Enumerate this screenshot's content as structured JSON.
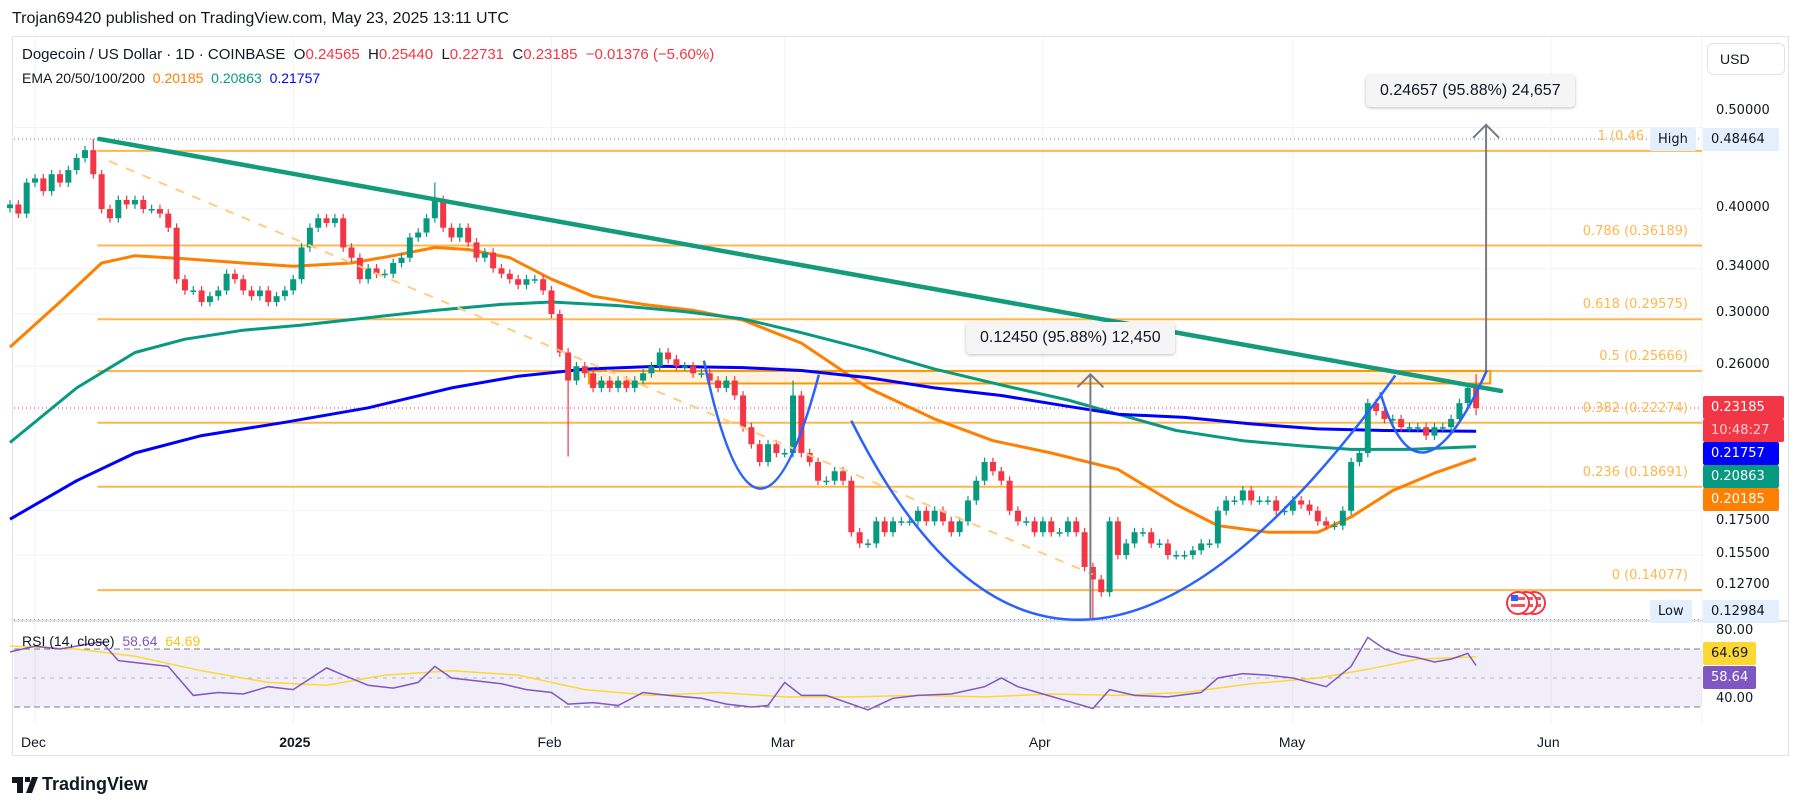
{
  "header": {
    "published": "Trojan69420 published on TradingView.com, May 23, 2025 13:11 UTC"
  },
  "legend": {
    "symbol": "Dogecoin / US Dollar · 1D · COINBASE",
    "o_label": "O",
    "o": "0.24565",
    "h_label": "H",
    "h": "0.25440",
    "l_label": "L",
    "l": "0.22731",
    "c_label": "C",
    "c": "0.23185",
    "change": "−0.01376 (−5.60%)",
    "ema_label": "EMA 20/50/100/200",
    "ema20": "0.20185",
    "ema50": "0.20863",
    "ema200": "0.21757"
  },
  "currency_button": "USD",
  "rsi_legend": {
    "label": "RSI (14, close)",
    "rsi": "58.64",
    "ma": "64.69"
  },
  "brand": "TradingView",
  "colors": {
    "up": "#089981",
    "down": "#f23645",
    "ema20": "#ff7f00",
    "ema50": "#089981",
    "ema200": "#0000ff",
    "fib": "#ffb74d",
    "trend": "#149b7c",
    "cup": "#2962ff",
    "rsi": "#7e57c2",
    "rsi_ma": "#fdd835"
  },
  "chart_data": {
    "type": "candlestick",
    "title": "Dogecoin / US Dollar · 1D · COINBASE",
    "scale": "log",
    "ylim": [
      0.125,
      0.51
    ],
    "x_start": "2024-11-28",
    "x_ticks": [
      {
        "label": "Dec",
        "day": 0,
        "bold": false
      },
      {
        "label": "2025",
        "day": 31,
        "bold": true
      },
      {
        "label": "Feb",
        "day": 62,
        "bold": false
      },
      {
        "label": "Mar",
        "day": 90,
        "bold": false
      },
      {
        "label": "Apr",
        "day": 121,
        "bold": false
      },
      {
        "label": "May",
        "day": 151,
        "bold": false
      },
      {
        "label": "Jun",
        "day": 182,
        "bold": false
      }
    ],
    "y_ticks": [
      {
        "label": "0.50000",
        "value": 0.5
      },
      {
        "label": "0.40000",
        "value": 0.4
      },
      {
        "label": "0.34000",
        "value": 0.34
      },
      {
        "label": "0.30000",
        "value": 0.3
      },
      {
        "label": "0.26000",
        "value": 0.26
      },
      {
        "label": "0.17500",
        "value": 0.175
      },
      {
        "label": "0.15500",
        "value": 0.155
      },
      {
        "label": "0.12700",
        "value": 0.127
      }
    ],
    "first_day": -3,
    "closes": [
      0.405,
      0.395,
      0.43,
      0.435,
      0.42,
      0.44,
      0.43,
      0.445,
      0.46,
      0.47,
      0.44,
      0.4,
      0.39,
      0.41,
      0.405,
      0.41,
      0.4,
      0.4,
      0.395,
      0.38,
      0.33,
      0.32,
      0.32,
      0.31,
      0.315,
      0.32,
      0.335,
      0.33,
      0.32,
      0.315,
      0.32,
      0.31,
      0.315,
      0.32,
      0.33,
      0.36,
      0.38,
      0.39,
      0.385,
      0.39,
      0.36,
      0.35,
      0.33,
      0.34,
      0.335,
      0.335,
      0.345,
      0.35,
      0.37,
      0.375,
      0.39,
      0.41,
      0.38,
      0.37,
      0.38,
      0.365,
      0.35,
      0.355,
      0.34,
      0.335,
      0.33,
      0.325,
      0.33,
      0.33,
      0.32,
      0.3,
      0.27,
      0.25,
      0.26,
      0.255,
      0.245,
      0.25,
      0.245,
      0.25,
      0.245,
      0.25,
      0.255,
      0.26,
      0.27,
      0.265,
      0.26,
      0.26,
      0.255,
      0.255,
      0.25,
      0.245,
      0.25,
      0.24,
      0.22,
      0.21,
      0.2,
      0.21,
      0.205,
      0.205,
      0.24,
      0.205,
      0.2,
      0.19,
      0.19,
      0.195,
      0.19,
      0.165,
      0.16,
      0.16,
      0.17,
      0.165,
      0.17,
      0.17,
      0.17,
      0.175,
      0.17,
      0.175,
      0.17,
      0.165,
      0.17,
      0.18,
      0.19,
      0.2,
      0.195,
      0.19,
      0.175,
      0.17,
      0.17,
      0.165,
      0.17,
      0.165,
      0.165,
      0.17,
      0.165,
      0.15,
      0.145,
      0.14,
      0.17,
      0.155,
      0.16,
      0.165,
      0.165,
      0.16,
      0.16,
      0.155,
      0.155,
      0.155,
      0.157,
      0.16,
      0.16,
      0.175,
      0.18,
      0.18,
      0.185,
      0.18,
      0.18,
      0.18,
      0.175,
      0.175,
      0.18,
      0.178,
      0.175,
      0.17,
      0.168,
      0.168,
      0.175,
      0.2,
      0.205,
      0.235,
      0.23,
      0.225,
      0.225,
      0.22,
      0.22,
      0.22,
      0.215,
      0.22,
      0.22,
      0.225,
      0.235,
      0.245,
      0.23185
    ],
    "extremes": [
      {
        "day": 7,
        "high": 0.48464
      },
      {
        "day": 64,
        "low": 0.203
      },
      {
        "day": 127,
        "low": 0.12984
      },
      {
        "day": 48,
        "high": 0.43
      },
      {
        "day": 91,
        "high": 0.25
      }
    ],
    "last_candle": {
      "day": 173,
      "open": 0.24565,
      "high": 0.2544,
      "low": 0.22731,
      "close": 0.23185
    },
    "series": [
      {
        "name": "EMA 20",
        "value": 0.20185,
        "points": [
          [
            -3,
            0.274
          ],
          [
            3,
            0.31
          ],
          [
            8,
            0.345
          ],
          [
            12,
            0.352
          ],
          [
            18,
            0.349
          ],
          [
            25,
            0.345
          ],
          [
            31,
            0.342
          ],
          [
            38,
            0.345
          ],
          [
            43,
            0.352
          ],
          [
            48,
            0.36
          ],
          [
            52,
            0.358
          ],
          [
            57,
            0.35
          ],
          [
            62,
            0.33
          ],
          [
            67,
            0.315
          ],
          [
            73,
            0.308
          ],
          [
            79,
            0.303
          ],
          [
            85,
            0.295
          ],
          [
            92,
            0.277
          ],
          [
            100,
            0.245
          ],
          [
            108,
            0.225
          ],
          [
            115,
            0.212
          ],
          [
            122,
            0.205
          ],
          [
            130,
            0.196
          ],
          [
            137,
            0.178
          ],
          [
            142,
            0.168
          ],
          [
            148,
            0.165
          ],
          [
            154,
            0.165
          ],
          [
            158,
            0.172
          ],
          [
            163,
            0.185
          ],
          [
            168,
            0.194
          ],
          [
            173,
            0.20185
          ]
        ]
      },
      {
        "name": "EMA 50",
        "value": 0.20863,
        "points": [
          [
            -3,
            0.211
          ],
          [
            5,
            0.245
          ],
          [
            12,
            0.27
          ],
          [
            18,
            0.28
          ],
          [
            25,
            0.287
          ],
          [
            32,
            0.291
          ],
          [
            40,
            0.297
          ],
          [
            48,
            0.303
          ],
          [
            56,
            0.308
          ],
          [
            62,
            0.31
          ],
          [
            70,
            0.307
          ],
          [
            78,
            0.302
          ],
          [
            85,
            0.296
          ],
          [
            92,
            0.285
          ],
          [
            100,
            0.272
          ],
          [
            108,
            0.258
          ],
          [
            116,
            0.247
          ],
          [
            124,
            0.237
          ],
          [
            130,
            0.228
          ],
          [
            137,
            0.218
          ],
          [
            145,
            0.212
          ],
          [
            152,
            0.209
          ],
          [
            158,
            0.207
          ],
          [
            165,
            0.207
          ],
          [
            173,
            0.20863
          ]
        ]
      },
      {
        "name": "EMA 200",
        "value": 0.21757,
        "points": [
          [
            -3,
            0.171
          ],
          [
            5,
            0.19
          ],
          [
            12,
            0.205
          ],
          [
            20,
            0.215
          ],
          [
            30,
            0.223
          ],
          [
            40,
            0.232
          ],
          [
            50,
            0.245
          ],
          [
            58,
            0.253
          ],
          [
            66,
            0.258
          ],
          [
            75,
            0.26
          ],
          [
            85,
            0.259
          ],
          [
            92,
            0.257
          ],
          [
            100,
            0.252
          ],
          [
            108,
            0.245
          ],
          [
            116,
            0.24
          ],
          [
            124,
            0.233
          ],
          [
            130,
            0.228
          ],
          [
            138,
            0.226
          ],
          [
            146,
            0.222
          ],
          [
            154,
            0.219
          ],
          [
            162,
            0.218
          ],
          [
            173,
            0.21757
          ]
        ]
      }
    ],
    "fib_levels": [
      {
        "label": "1 (0.46",
        "value": 0.469
      },
      {
        "label": "0.786 (0.36189)",
        "value": 0.36189
      },
      {
        "label": "0.618 (0.29575)",
        "value": 0.29575
      },
      {
        "label": "0.5 (0.25666)",
        "value": 0.25666
      },
      {
        "label": "0.382 (0.22274)",
        "value": 0.22274
      },
      {
        "label": "0.236 (0.18691)",
        "value": 0.18691
      },
      {
        "label": "0 (0.14077)",
        "value": 0.14077
      }
    ],
    "fib_start_day": 7.5,
    "trendline": [
      [
        7.7,
        0.48464
      ],
      [
        176,
        0.243
      ]
    ],
    "dashed_line": [
      [
        8.9,
        0.456
      ],
      [
        127,
        0.147
      ]
    ],
    "resistance_zone": {
      "from_day": 66.5,
      "to_day": 174.7,
      "top": 0.2567,
      "bottom": 0.248
    },
    "cups": [
      [
        [
          80.3,
          0.264
        ],
        [
          86.9,
          0.186
        ],
        [
          94.1,
          0.254
        ]
      ],
      [
        [
          98,
          0.224
        ],
        [
          126.9,
          0.13
        ],
        [
          163.3,
          0.2535
        ]
      ],
      [
        [
          161.5,
          0.242
        ],
        [
          167,
          0.2055
        ],
        [
          174.3,
          0.2572
        ]
      ]
    ],
    "measures": [
      {
        "day": 126.7,
        "from": 0.12984,
        "to": 0.25434,
        "label": "0.12450 (95.88%) 12,450"
      },
      {
        "day": 174.2,
        "from": 0.2572,
        "to": 0.50377,
        "label": "0.24657 (95.88%) 24,657"
      }
    ],
    "high": {
      "label": "High",
      "value": "0.48464",
      "price": 0.48464
    },
    "low": {
      "label": "Low",
      "value": "0.12984",
      "price": 0.12984
    },
    "price_tags": {
      "last": "0.23185",
      "countdown": "10:48:27",
      "last_price": 0.23185,
      "ema200": "0.21757",
      "ema50": "0.20863",
      "ema20": "0.20185"
    },
    "rsi": {
      "title": "RSI (14, close)",
      "value": 58.64,
      "ma_value": 64.69,
      "bands": [
        70,
        50,
        30
      ],
      "y_ticks": [
        {
          "label": "80.00",
          "value": 80
        },
        {
          "label": "40.00",
          "value": 40
        }
      ],
      "tags": {
        "ma": "64.69",
        "rsi": "58.64"
      },
      "points": [
        [
          -3,
          68
        ],
        [
          0,
          72
        ],
        [
          3,
          70
        ],
        [
          6,
          73
        ],
        [
          8,
          75
        ],
        [
          10,
          62
        ],
        [
          13,
          60
        ],
        [
          16,
          58
        ],
        [
          19,
          38
        ],
        [
          22,
          40
        ],
        [
          25,
          39
        ],
        [
          28,
          44
        ],
        [
          31,
          42
        ],
        [
          35,
          57
        ],
        [
          37,
          52
        ],
        [
          40,
          45
        ],
        [
          43,
          43
        ],
        [
          46,
          47
        ],
        [
          48,
          58
        ],
        [
          50,
          50
        ],
        [
          53,
          48
        ],
        [
          56,
          46
        ],
        [
          59,
          42
        ],
        [
          62,
          40
        ],
        [
          64,
          32
        ],
        [
          67,
          33
        ],
        [
          70,
          31
        ],
        [
          73,
          40
        ],
        [
          76,
          38
        ],
        [
          80,
          36
        ],
        [
          83,
          32
        ],
        [
          86,
          30
        ],
        [
          88,
          31
        ],
        [
          90,
          47
        ],
        [
          92,
          38
        ],
        [
          95,
          38
        ],
        [
          98,
          32
        ],
        [
          100,
          28
        ],
        [
          103,
          36
        ],
        [
          106,
          38
        ],
        [
          110,
          39
        ],
        [
          114,
          44
        ],
        [
          116,
          50
        ],
        [
          118,
          44
        ],
        [
          121,
          39
        ],
        [
          124,
          34
        ],
        [
          127,
          29
        ],
        [
          129,
          42
        ],
        [
          132,
          38
        ],
        [
          136,
          37
        ],
        [
          140,
          40
        ],
        [
          142,
          50
        ],
        [
          145,
          53
        ],
        [
          148,
          52
        ],
        [
          151,
          50
        ],
        [
          155,
          44
        ],
        [
          158,
          58
        ],
        [
          160,
          78
        ],
        [
          162,
          70
        ],
        [
          164,
          66
        ],
        [
          166,
          64
        ],
        [
          168,
          61
        ],
        [
          170,
          63
        ],
        [
          172,
          67
        ],
        [
          173,
          58.64
        ]
      ],
      "ma_points": [
        [
          -3,
          72
        ],
        [
          5,
          70
        ],
        [
          12,
          65
        ],
        [
          20,
          55
        ],
        [
          28,
          47
        ],
        [
          35,
          45
        ],
        [
          42,
          52
        ],
        [
          50,
          55
        ],
        [
          58,
          52
        ],
        [
          66,
          42
        ],
        [
          74,
          38
        ],
        [
          82,
          40
        ],
        [
          90,
          37
        ],
        [
          98,
          37
        ],
        [
          106,
          38
        ],
        [
          114,
          37
        ],
        [
          122,
          39
        ],
        [
          130,
          38
        ],
        [
          138,
          40
        ],
        [
          146,
          46
        ],
        [
          154,
          50
        ],
        [
          160,
          56
        ],
        [
          166,
          63
        ],
        [
          173,
          64.69
        ]
      ]
    }
  }
}
